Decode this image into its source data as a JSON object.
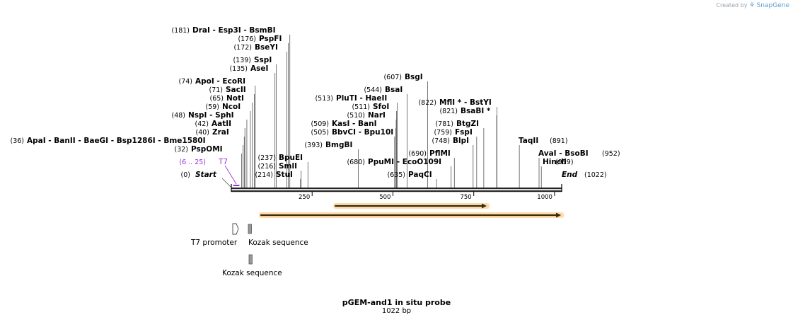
{
  "brand": {
    "created_by": "Created by",
    "app": "SnapGene"
  },
  "plasmid": {
    "name": "pGEM-and1 in situ probe",
    "length_label": "1022 bp",
    "length": 1022
  },
  "colors": {
    "primer": "#9b30d9",
    "orf_fill": "#c7a045",
    "orf_glow": "#ffd69c",
    "backbone": "#222222"
  },
  "ruler": {
    "ticks": [
      {
        "pos": 250,
        "label": "250"
      },
      {
        "pos": 500,
        "label": "500"
      },
      {
        "pos": 750,
        "label": "750"
      },
      {
        "pos": 1000,
        "label": "1000"
      }
    ]
  },
  "ends": {
    "start": {
      "label": "Start",
      "pos_label": "(0)"
    },
    "end": {
      "label": "End",
      "pos_label": "(1022)"
    }
  },
  "sites": [
    {
      "pos": 36,
      "pos_label": "(36)",
      "label": "ApaI   - BanII   - BaeGI   - Bsp1286I   - Bme1580I"
    },
    {
      "pos": 32,
      "pos_label": "(32)",
      "label": "PspOMI"
    },
    {
      "pos": 40,
      "pos_label": "(40)",
      "label": "ZraI"
    },
    {
      "pos": 42,
      "pos_label": "(42)",
      "label": "AatII"
    },
    {
      "pos": 48,
      "pos_label": "(48)",
      "label": "NspI   - SphI"
    },
    {
      "pos": 59,
      "pos_label": "(59)",
      "label": "NcoI"
    },
    {
      "pos": 65,
      "pos_label": "(65)",
      "label": "NotI"
    },
    {
      "pos": 71,
      "pos_label": "(71)",
      "label": "SacII"
    },
    {
      "pos": 74,
      "pos_label": "(74)",
      "label": "ApoI   - EcoRI"
    },
    {
      "pos": 135,
      "pos_label": "(135)",
      "label": "AseI"
    },
    {
      "pos": 139,
      "pos_label": "(139)",
      "label": "SspI"
    },
    {
      "pos": 172,
      "pos_label": "(172)",
      "label": "BseYI"
    },
    {
      "pos": 176,
      "pos_label": "(176)",
      "label": "PspFI"
    },
    {
      "pos": 181,
      "pos_label": "(181)",
      "label": "DraI   - Esp3I   - BsmBI"
    },
    {
      "pos": 214,
      "pos_label": "(214)",
      "label": "StuI"
    },
    {
      "pos": 216,
      "pos_label": "(216)",
      "label": "SmlI"
    },
    {
      "pos": 237,
      "pos_label": "(237)",
      "label": "BpuEI"
    },
    {
      "pos": 393,
      "pos_label": "(393)",
      "label": "BmgBI"
    },
    {
      "pos": 505,
      "pos_label": "(505)",
      "label": "BbvCI   - Bpu10I"
    },
    {
      "pos": 509,
      "pos_label": "(509)",
      "label": "KasI   - BanI"
    },
    {
      "pos": 510,
      "pos_label": "(510)",
      "label": "NarI"
    },
    {
      "pos": 511,
      "pos_label": "(511)",
      "label": "SfoI"
    },
    {
      "pos": 513,
      "pos_label": "(513)",
      "label": "PluTI   - HaeII"
    },
    {
      "pos": 544,
      "pos_label": "(544)",
      "label": "BsaI"
    },
    {
      "pos": 607,
      "pos_label": "(607)",
      "label": "BsgI"
    },
    {
      "pos": 680,
      "pos_label": "(680)",
      "label": "PpuMI   - EcoO109I"
    },
    {
      "pos": 635,
      "pos_label": "(635)",
      "label": "PaqCI"
    },
    {
      "pos": 690,
      "pos_label": "(690)",
      "label": "PflMI"
    },
    {
      "pos": 748,
      "pos_label": "(748)",
      "label": "BlpI"
    },
    {
      "pos": 759,
      "pos_label": "(759)",
      "label": "FspI"
    },
    {
      "pos": 781,
      "pos_label": "(781)",
      "label": "BtgZI"
    },
    {
      "pos": 821,
      "pos_label": "(821)",
      "label": "BsaBI  *"
    },
    {
      "pos": 822,
      "pos_label": "(822)",
      "label": "MflI *  - BstYI"
    },
    {
      "pos": 891,
      "pos_label": "(891)",
      "label": "TaqII"
    },
    {
      "pos": 952,
      "pos_label": "(952)",
      "label": "AvaI   - BsoBI"
    },
    {
      "pos": 959,
      "pos_label": "(959)",
      "label": "HincII"
    }
  ],
  "primer": {
    "label": "T7",
    "range_label": "(6 .. 25)",
    "start": 6,
    "end": 25
  },
  "orfs": [
    {
      "start": 320,
      "end": 790
    },
    {
      "start": 90,
      "end": 1020
    }
  ],
  "features": [
    {
      "label": "T7 promoter",
      "type": "promoter",
      "start": 6,
      "end": 25
    },
    {
      "label": "Kozak sequence",
      "type": "misc",
      "start": 54,
      "end": 63
    },
    {
      "label": "Kozak sequence",
      "type": "misc",
      "start": 54,
      "end": 63
    }
  ]
}
